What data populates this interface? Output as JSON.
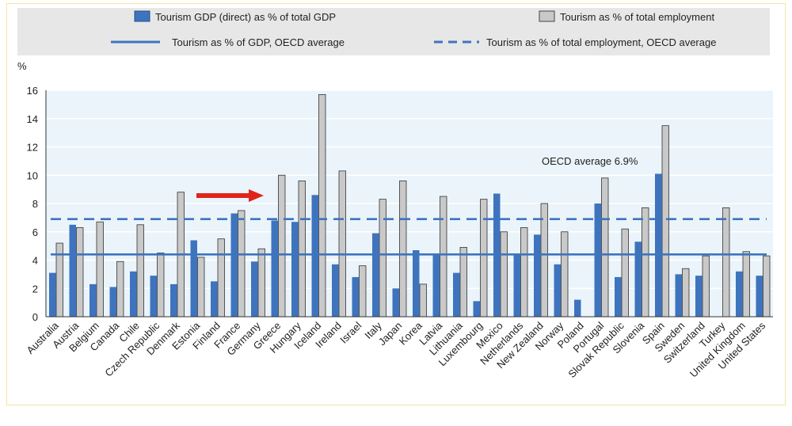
{
  "legend": {
    "gdp_bar": "Tourism GDP (direct) as % of total GDP",
    "emp_bar": "Tourism as % of total employment",
    "gdp_avg": "Tourism as % of GDP, OECD average",
    "emp_avg": "Tourism as % of total employment, OECD average"
  },
  "annotation": "OECD average 6.9%",
  "colors": {
    "gdp": "#3e74be",
    "emp": "#c9c9c9",
    "plot_bg": "#eaf4fa",
    "arrow": "#e0241b"
  },
  "chart_data": {
    "type": "bar",
    "ylabel": "%",
    "ylim": [
      0,
      16
    ],
    "yticks": [
      0,
      2,
      4,
      6,
      8,
      10,
      12,
      14,
      16
    ],
    "grid": true,
    "legend_position": "top",
    "categories": [
      "Australia",
      "Austria",
      "Belgium",
      "Canada",
      "Chile",
      "Czech Republic",
      "Denmark",
      "Estonia",
      "Finland",
      "France",
      "Germany",
      "Greece",
      "Hungary",
      "Iceland",
      "Ireland",
      "Israel",
      "Italy",
      "Japan",
      "Korea",
      "Latvia",
      "Lithuania",
      "Luxembourg",
      "Mexico",
      "Netherlands",
      "New Zealand",
      "Norway",
      "Poland",
      "Portugal",
      "Slovak Republic",
      "Slovenia",
      "Spain",
      "Sweden",
      "Switzerland",
      "Turkey",
      "United Kingdom",
      "United States"
    ],
    "series": [
      {
        "name": "Tourism GDP (direct) as % of total GDP",
        "values": [
          3.1,
          6.5,
          2.3,
          2.1,
          3.2,
          2.9,
          2.3,
          5.4,
          2.5,
          7.3,
          3.9,
          6.8,
          6.7,
          8.6,
          3.7,
          2.8,
          5.9,
          2.0,
          4.7,
          4.4,
          3.1,
          1.1,
          8.7,
          4.4,
          5.8,
          3.7,
          1.2,
          8.0,
          2.8,
          5.3,
          10.1,
          3.0,
          2.9,
          0.0,
          3.2,
          2.9
        ]
      },
      {
        "name": "Tourism as % of total employment",
        "values": [
          5.2,
          6.3,
          6.7,
          3.9,
          6.5,
          4.5,
          8.8,
          4.2,
          5.5,
          7.5,
          4.8,
          10.0,
          9.6,
          15.7,
          10.3,
          3.6,
          8.3,
          9.6,
          2.3,
          8.5,
          4.9,
          8.3,
          6.0,
          6.3,
          8.0,
          6.0,
          0.0,
          9.8,
          6.2,
          7.7,
          13.5,
          3.4,
          4.3,
          7.7,
          4.6,
          4.3
        ]
      }
    ],
    "reference_lines": [
      {
        "name": "Tourism as % of GDP, OECD average",
        "value": 4.4,
        "style": "solid"
      },
      {
        "name": "Tourism as % of total employment, OECD average",
        "value": 6.9,
        "style": "dashed"
      }
    ]
  }
}
